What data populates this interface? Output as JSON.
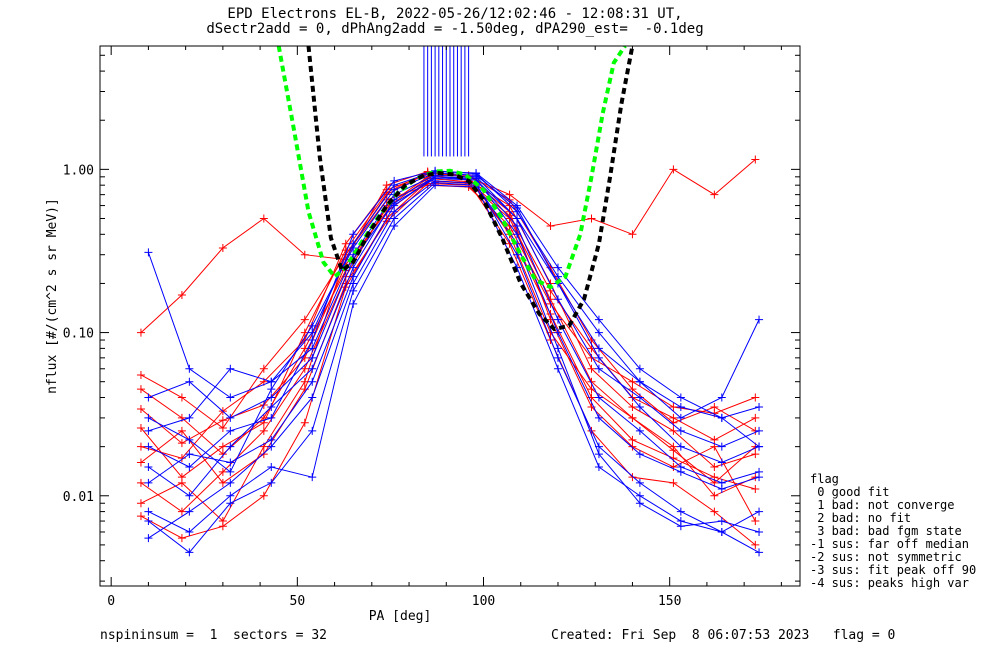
{
  "header": {
    "title_line1": "EPD Electrons EL-B, 2022-05-26/12:02:46 - 12:08:31 UT,",
    "title_line2": "dSectr2add = 0, dPhAng2add = -1.50deg, dPA290_est=  -0.1deg"
  },
  "footer": {
    "left": "nspininsum =  1  sectors = 32",
    "right": "Created: Fri Sep  8 06:07:53 2023   flag = 0"
  },
  "legend": {
    "title": "flag",
    "items": [
      " 0 good fit",
      " 1 bad: not converge",
      " 2 bad: no fit",
      " 3 bad: bad fgm state",
      "-1 sus: far off median",
      "-2 sus: not symmetric",
      "-3 sus: fit peak off 90",
      "-4 sus: peaks high var"
    ]
  },
  "colors": {
    "red": "#ff0000",
    "blue": "#0000ff",
    "green_fit": "#00ff00",
    "black_fit": "#000000"
  },
  "chart_data": {
    "type": "line",
    "xlabel": "PA [deg]",
    "ylabel": "nflux [#/(cm^2 s sr MeV)]",
    "xlim": [
      -3,
      185
    ],
    "ylim": [
      0.0028,
      5.7
    ],
    "yscale": "log",
    "x_ticks": [
      0,
      50,
      100,
      150
    ],
    "y_ticks": [
      {
        "value": 0.01,
        "label": "0.01"
      },
      {
        "value": 0.1,
        "label": "0.10"
      },
      {
        "value": 1.0,
        "label": "1.00"
      }
    ],
    "series": [
      {
        "color": "red",
        "lines": [
          {
            "x": [
              8,
              19,
              30,
              41,
              52,
              63,
              74,
              85,
              96,
              107,
              118,
              129,
              140,
              151,
              162,
              173
            ],
            "y": [
              0.034,
              0.021,
              0.029,
              0.036,
              0.07,
              0.26,
              0.55,
              0.85,
              0.82,
              0.5,
              0.16,
              0.05,
              0.03,
              0.019,
              0.012,
              0.02
            ]
          },
          {
            "x": [
              8,
              19,
              30,
              41,
              52,
              63,
              74,
              85,
              96,
              107,
              118,
              129,
              140,
              151,
              162,
              173
            ],
            "y": [
              0.012,
              0.008,
              0.014,
              0.025,
              0.06,
              0.22,
              0.6,
              0.9,
              0.88,
              0.55,
              0.12,
              0.035,
              0.02,
              0.015,
              0.02,
              0.007
            ]
          },
          {
            "x": [
              8,
              19,
              30,
              41,
              52,
              63,
              74,
              85,
              96,
              107,
              118,
              129,
              140,
              151,
              162,
              173
            ],
            "y": [
              0.009,
              0.012,
              0.007,
              0.02,
              0.05,
              0.3,
              0.7,
              0.95,
              0.9,
              0.4,
              0.1,
              0.045,
              0.03,
              0.02,
              0.01,
              0.013
            ]
          },
          {
            "x": [
              8,
              19,
              30,
              41,
              52,
              63,
              74,
              85,
              96,
              107,
              118,
              129,
              140,
              151,
              162,
              173
            ],
            "y": [
              0.02,
              0.017,
              0.033,
              0.05,
              0.09,
              0.35,
              0.75,
              0.93,
              0.86,
              0.6,
              0.2,
              0.06,
              0.035,
              0.025,
              0.015,
              0.018
            ]
          },
          {
            "x": [
              8,
              19,
              30,
              41,
              52,
              63,
              74,
              85,
              96,
              107,
              118,
              129,
              140,
              151,
              162,
              173
            ],
            "y": [
              0.1,
              0.17,
              0.33,
              0.5,
              0.3,
              0.28,
              0.8,
              0.97,
              0.9,
              0.7,
              0.45,
              0.5,
              0.4,
              1.0,
              0.7,
              1.15
            ]
          },
          {
            "x": [
              8,
              19,
              30,
              41,
              52,
              63,
              74,
              85,
              96,
              107,
              118,
              129,
              140,
              151,
              162,
              173
            ],
            "y": [
              0.055,
              0.04,
              0.026,
              0.06,
              0.12,
              0.3,
              0.65,
              0.8,
              0.78,
              0.45,
              0.15,
              0.07,
              0.05,
              0.035,
              0.032,
              0.04
            ]
          },
          {
            "x": [
              8,
              19,
              30,
              41,
              52,
              63,
              74,
              85,
              96,
              107,
              118,
              129,
              140,
              151,
              162,
              173
            ],
            "y": [
              0.0075,
              0.0055,
              0.0065,
              0.01,
              0.028,
              0.19,
              0.5,
              0.85,
              0.83,
              0.35,
              0.09,
              0.025,
              0.013,
              0.012,
              0.008,
              0.005
            ]
          },
          {
            "x": [
              8,
              19,
              30,
              41,
              52,
              63,
              74,
              85,
              96,
              107,
              118,
              129,
              140,
              151,
              162,
              173
            ],
            "y": [
              0.045,
              0.03,
              0.018,
              0.03,
              0.08,
              0.24,
              0.58,
              0.88,
              0.84,
              0.52,
              0.18,
              0.08,
              0.04,
              0.03,
              0.022,
              0.03
            ]
          },
          {
            "x": [
              8,
              19,
              30,
              41,
              52,
              63,
              74,
              85,
              96,
              107,
              118,
              129,
              140,
              151,
              162,
              173
            ],
            "y": [
              0.016,
              0.025,
              0.012,
              0.018,
              0.045,
              0.2,
              0.48,
              0.82,
              0.8,
              0.42,
              0.13,
              0.04,
              0.022,
              0.017,
              0.013,
              0.011
            ]
          },
          {
            "x": [
              8,
              19,
              30,
              41,
              52,
              63,
              74,
              85,
              96,
              107,
              118,
              129,
              140,
              151,
              162,
              173
            ],
            "y": [
              0.026,
              0.013,
              0.02,
              0.028,
              0.1,
              0.32,
              0.72,
              0.96,
              0.92,
              0.65,
              0.25,
              0.09,
              0.045,
              0.028,
              0.035,
              0.025
            ]
          }
        ]
      },
      {
        "color": "blue",
        "lines": [
          {
            "x": [
              10,
              21,
              32,
              43,
              54,
              65,
              76,
              87,
              98,
              109,
              120,
              131,
              142,
              153,
              164,
              174
            ],
            "y": [
              0.31,
              0.06,
              0.04,
              0.05,
              0.08,
              0.3,
              0.7,
              0.92,
              0.9,
              0.5,
              0.2,
              0.08,
              0.05,
              0.03,
              0.04,
              0.12
            ]
          },
          {
            "x": [
              10,
              21,
              32,
              43,
              54,
              65,
              76,
              87,
              98,
              109,
              120,
              131,
              142,
              153,
              164,
              174
            ],
            "y": [
              0.0055,
              0.008,
              0.012,
              0.02,
              0.04,
              0.2,
              0.55,
              0.85,
              0.82,
              0.3,
              0.07,
              0.02,
              0.012,
              0.008,
              0.006,
              0.0045
            ]
          },
          {
            "x": [
              10,
              21,
              32,
              43,
              54,
              65,
              76,
              87,
              98,
              109,
              120,
              131,
              142,
              153,
              164,
              174
            ],
            "y": [
              0.015,
              0.01,
              0.02,
              0.035,
              0.06,
              0.25,
              0.65,
              0.9,
              0.86,
              0.45,
              0.12,
              0.04,
              0.025,
              0.015,
              0.012,
              0.014
            ]
          },
          {
            "x": [
              10,
              21,
              32,
              43,
              54,
              65,
              76,
              87,
              98,
              109,
              120,
              131,
              142,
              153,
              164,
              174
            ],
            "y": [
              0.025,
              0.03,
              0.06,
              0.05,
              0.1,
              0.35,
              0.8,
              0.97,
              0.95,
              0.6,
              0.25,
              0.12,
              0.06,
              0.04,
              0.03,
              0.02
            ]
          },
          {
            "x": [
              10,
              21,
              32,
              43,
              54,
              65,
              76,
              87,
              98,
              109,
              120,
              131,
              142,
              153,
              164,
              174
            ],
            "y": [
              0.008,
              0.006,
              0.01,
              0.015,
              0.013,
              0.15,
              0.45,
              0.8,
              0.78,
              0.25,
              0.06,
              0.015,
              0.01,
              0.007,
              0.006,
              0.008
            ]
          },
          {
            "x": [
              10,
              21,
              32,
              43,
              54,
              65,
              76,
              87,
              98,
              109,
              120,
              131,
              142,
              153,
              164,
              174
            ],
            "y": [
              0.04,
              0.05,
              0.03,
              0.04,
              0.07,
              0.28,
              0.62,
              0.88,
              0.86,
              0.5,
              0.16,
              0.06,
              0.04,
              0.025,
              0.02,
              0.025
            ]
          },
          {
            "x": [
              10,
              21,
              32,
              43,
              54,
              65,
              76,
              87,
              98,
              109,
              120,
              131,
              142,
              153,
              164,
              174
            ],
            "y": [
              0.012,
              0.018,
              0.016,
              0.022,
              0.05,
              0.22,
              0.6,
              0.9,
              0.88,
              0.4,
              0.1,
              0.03,
              0.018,
              0.014,
              0.011,
              0.013
            ]
          },
          {
            "x": [
              10,
              21,
              32,
              43,
              54,
              65,
              76,
              87,
              98,
              109,
              120,
              131,
              142,
              153,
              164,
              174
            ],
            "y": [
              0.02,
              0.015,
              0.025,
              0.03,
              0.09,
              0.4,
              0.85,
              0.98,
              0.94,
              0.55,
              0.22,
              0.1,
              0.05,
              0.035,
              0.03,
              0.035
            ]
          },
          {
            "x": [
              10,
              21,
              32,
              43,
              54,
              65,
              76,
              87,
              98,
              109,
              120,
              131,
              142,
              153,
              164,
              174
            ],
            "y": [
              0.007,
              0.0045,
              0.009,
              0.012,
              0.025,
              0.18,
              0.5,
              0.83,
              0.8,
              0.35,
              0.08,
              0.018,
              0.009,
              0.0065,
              0.007,
              0.006
            ]
          },
          {
            "x": [
              10,
              21,
              32,
              43,
              54,
              65,
              76,
              87,
              98,
              109,
              120,
              131,
              142,
              153,
              164,
              174
            ],
            "y": [
              0.03,
              0.022,
              0.014,
              0.045,
              0.11,
              0.33,
              0.75,
              0.95,
              0.92,
              0.58,
              0.2,
              0.07,
              0.035,
              0.02,
              0.016,
              0.02
            ]
          }
        ]
      }
    ],
    "spikes": {
      "color": "blue",
      "x": [
        84,
        85,
        86,
        87,
        88,
        89,
        90,
        91,
        92,
        93,
        94,
        95,
        96
      ],
      "y_from": 1.2,
      "y_to": 5.7
    },
    "fits": [
      {
        "color": "green_fit",
        "x": [
          45,
          49,
          53,
          57,
          60,
          63,
          67,
          72,
          77,
          82,
          87,
          91,
          95,
          100,
          105,
          110,
          114,
          118,
          122,
          126,
          129,
          132,
          135,
          138
        ],
        "y": [
          5.7,
          1.8,
          0.55,
          0.27,
          0.22,
          0.25,
          0.35,
          0.52,
          0.72,
          0.88,
          0.97,
          0.98,
          0.93,
          0.75,
          0.5,
          0.3,
          0.21,
          0.19,
          0.22,
          0.4,
          0.9,
          2.2,
          4.5,
          5.7
        ]
      },
      {
        "color": "black_fit",
        "x": [
          53,
          56,
          59,
          62,
          65,
          69,
          74,
          79,
          84,
          88,
          92,
          96,
          100,
          105,
          110,
          115,
          119,
          123,
          127,
          131,
          134,
          137,
          140
        ],
        "y": [
          5.7,
          1.2,
          0.38,
          0.24,
          0.27,
          0.4,
          0.6,
          0.8,
          0.92,
          0.95,
          0.93,
          0.85,
          0.65,
          0.38,
          0.2,
          0.13,
          0.105,
          0.11,
          0.16,
          0.35,
          0.9,
          2.5,
          5.7
        ]
      }
    ]
  }
}
